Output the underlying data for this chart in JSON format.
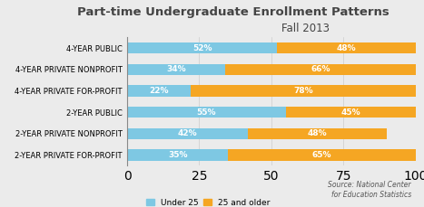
{
  "title_line1": "Part-time Undergraduate Enrollment Patterns",
  "title_line2": "Fall 2013",
  "categories": [
    "4-YEAR PUBLIC",
    "4-YEAR PRIVATE NONPROFIT",
    "4-YEAR PRIVATE FOR-PROFIT",
    "2-YEAR PUBLIC",
    "2-YEAR PRIVATE NONPROFIT",
    "2-YEAR PRIVATE FOR-PROFIT"
  ],
  "under25": [
    52,
    34,
    22,
    55,
    42,
    35
  ],
  "over25": [
    48,
    66,
    78,
    45,
    48,
    65
  ],
  "color_under25": "#7ec8e3",
  "color_over25": "#f5a623",
  "background_color": "#ebebeb",
  "source_text": "Source: National Center\nfor Education Statistics",
  "legend_under25": "Under 25",
  "legend_over25": "25 and older",
  "label_fontsize": 6.5,
  "title1_fontsize": 9.5,
  "title2_fontsize": 8.5,
  "category_fontsize": 6.0,
  "xlim": [
    0,
    100
  ]
}
